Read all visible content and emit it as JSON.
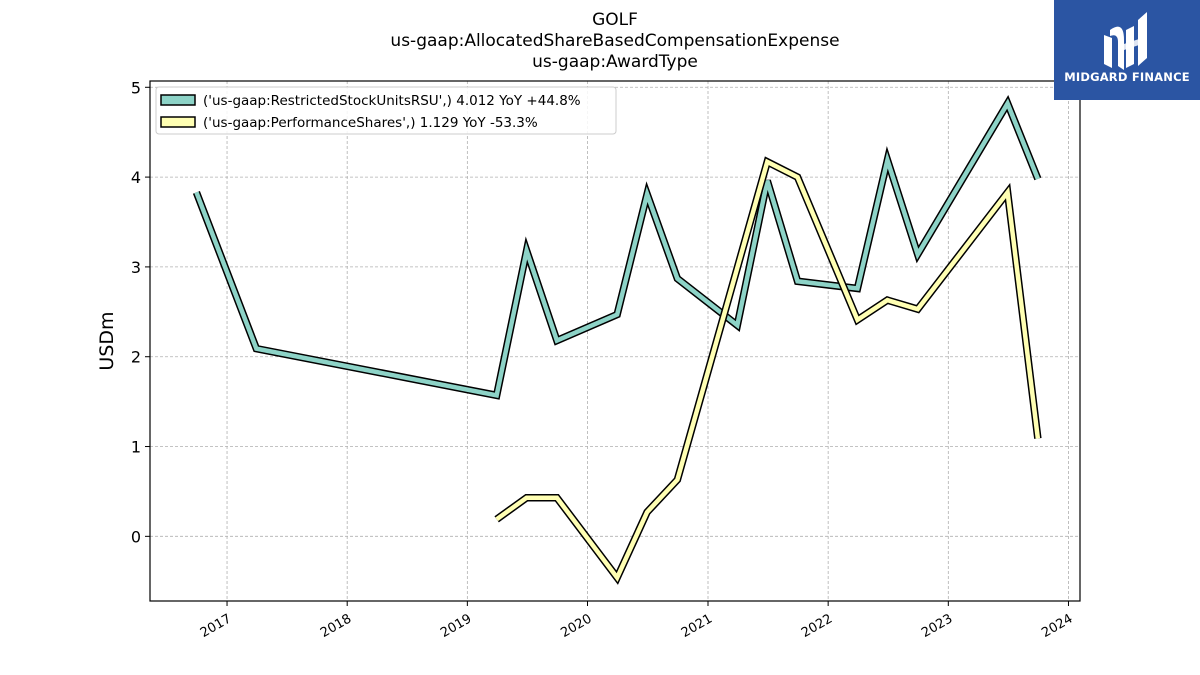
{
  "title": {
    "line1": "GOLF",
    "line2": "us-gaap:AllocatedShareBasedCompensationExpense",
    "line3": "us-gaap:AwardType"
  },
  "logo": {
    "text": "MIDGARD FINANCE",
    "icon": "midgard-logo-icon",
    "background": "#2b55a3"
  },
  "chart_data": {
    "type": "line",
    "ylabel": "USDm",
    "xlabel": "",
    "ylim": [
      -0.72,
      5.07
    ],
    "xlim": [
      "2016-05-12",
      "2024-02-05"
    ],
    "yticks": [
      0,
      1,
      2,
      3,
      4,
      5
    ],
    "xticks": [
      "2017",
      "2018",
      "2019",
      "2020",
      "2021",
      "2022",
      "2023",
      "2024"
    ],
    "grid": true,
    "legend_position": "top-left",
    "series": [
      {
        "name": "('us-gaap:RestrictedStockUnitsRSU',) 4.012 YoY +44.8%",
        "color": "#8dd3c7",
        "points": [
          [
            "2016-09-30",
            3.83
          ],
          [
            "2017-03-31",
            2.09
          ],
          [
            "2019-03-31",
            1.57
          ],
          [
            "2019-06-30",
            3.18
          ],
          [
            "2019-09-30",
            2.18
          ],
          [
            "2020-03-31",
            2.47
          ],
          [
            "2020-06-30",
            3.81
          ],
          [
            "2020-09-30",
            2.87
          ],
          [
            "2021-03-31",
            2.35
          ],
          [
            "2021-06-30",
            3.96
          ],
          [
            "2021-09-30",
            2.84
          ],
          [
            "2022-03-31",
            2.76
          ],
          [
            "2022-06-30",
            4.19
          ],
          [
            "2022-09-30",
            3.14
          ],
          [
            "2023-06-30",
            4.82
          ],
          [
            "2023-09-30",
            3.98
          ]
        ]
      },
      {
        "name": "('us-gaap:PerformanceShares',) 1.129 YoY -53.3%",
        "color": "#ffffb3",
        "points": [
          [
            "2019-03-31",
            0.19
          ],
          [
            "2019-06-30",
            0.43
          ],
          [
            "2019-09-30",
            0.43
          ],
          [
            "2020-03-31",
            -0.46
          ],
          [
            "2020-06-30",
            0.27
          ],
          [
            "2020-09-30",
            0.63
          ],
          [
            "2021-06-30",
            4.17
          ],
          [
            "2021-09-30",
            4.0
          ],
          [
            "2022-03-31",
            2.41
          ],
          [
            "2022-06-30",
            2.63
          ],
          [
            "2022-09-30",
            2.53
          ],
          [
            "2023-06-30",
            3.83
          ],
          [
            "2023-09-30",
            1.09
          ]
        ]
      }
    ]
  }
}
